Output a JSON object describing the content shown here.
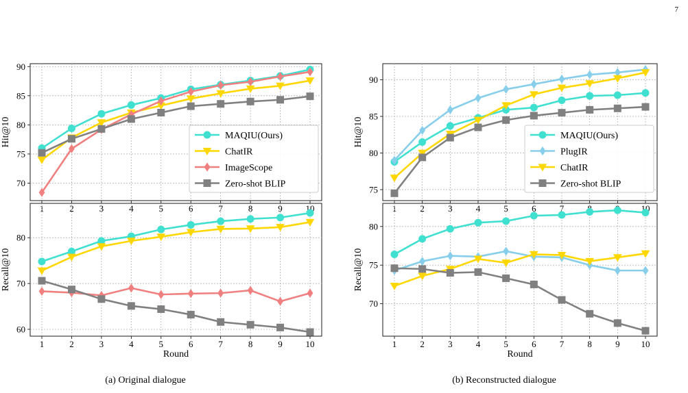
{
  "page_number": "7",
  "captions": {
    "left": "(a) Original dialogue",
    "right": "(b) Reconstructed dialogue"
  },
  "colors": {
    "MAQIU(Ours)": "#40E0D0",
    "PlugIR": "#87CEEB",
    "ChatIR": "#FFD700",
    "ImageScope": "#F08080",
    "Zero-shot BLIP": "#808080"
  },
  "chart_data": [
    {
      "id": "a-hit",
      "type": "line",
      "panel": "a",
      "ylabel": "Hit@10",
      "xlabel": "",
      "x": [
        1,
        2,
        3,
        4,
        5,
        6,
        7,
        8,
        9,
        10
      ],
      "ylim": [
        67,
        90.5
      ],
      "yticks": [
        70,
        75,
        80,
        85,
        90
      ],
      "grid": true,
      "legend_position": "center-right",
      "series": [
        {
          "name": "MAQIU(Ours)",
          "marker": "circle",
          "values": [
            76.0,
            79.4,
            81.9,
            83.4,
            84.6,
            86.1,
            86.9,
            87.6,
            88.4,
            89.5
          ]
        },
        {
          "name": "ChatIR",
          "marker": "triangle-down",
          "values": [
            74.0,
            77.8,
            80.4,
            82.1,
            83.3,
            84.5,
            85.4,
            86.2,
            86.7,
            87.6
          ]
        },
        {
          "name": "ImageScope",
          "marker": "diamond",
          "values": [
            68.4,
            75.9,
            79.2,
            81.8,
            84.1,
            85.7,
            86.8,
            87.4,
            88.3,
            89.1
          ]
        },
        {
          "name": "Zero-shot BLIP",
          "marker": "square",
          "values": [
            75.2,
            77.6,
            79.3,
            81.0,
            82.1,
            83.2,
            83.6,
            84.0,
            84.3,
            84.9
          ]
        }
      ]
    },
    {
      "id": "a-recall",
      "type": "line",
      "panel": "a",
      "ylabel": "Recall@10",
      "xlabel": "Round",
      "x": [
        1,
        2,
        3,
        4,
        5,
        6,
        7,
        8,
        9,
        10
      ],
      "ylim": [
        58.5,
        87.5
      ],
      "yticks": [
        60,
        70,
        80
      ],
      "grid": true,
      "series": [
        {
          "name": "MAQIU(Ours)",
          "marker": "circle",
          "values": [
            74.8,
            77.0,
            79.3,
            80.3,
            81.8,
            82.8,
            83.6,
            84.1,
            84.4,
            85.4
          ]
        },
        {
          "name": "ChatIR",
          "marker": "triangle-down",
          "values": [
            72.8,
            75.8,
            78.1,
            79.3,
            80.2,
            81.2,
            81.9,
            82.0,
            82.3,
            83.4
          ]
        },
        {
          "name": "ImageScope",
          "marker": "diamond",
          "values": [
            68.3,
            68.0,
            67.4,
            69.0,
            67.6,
            67.8,
            67.9,
            68.5,
            66.1,
            67.9
          ]
        },
        {
          "name": "Zero-shot BLIP",
          "marker": "square",
          "values": [
            70.6,
            68.7,
            66.6,
            65.1,
            64.4,
            63.2,
            61.6,
            61.0,
            60.4,
            59.4
          ]
        }
      ]
    },
    {
      "id": "b-hit",
      "type": "line",
      "panel": "b",
      "ylabel": "Hit@10",
      "xlabel": "",
      "x": [
        1,
        2,
        3,
        4,
        5,
        6,
        7,
        8,
        9,
        10
      ],
      "ylim": [
        73.5,
        92.2
      ],
      "yticks": [
        75,
        80,
        85,
        90
      ],
      "grid": true,
      "legend_position": "center-right",
      "series": [
        {
          "name": "MAQIU(Ours)",
          "marker": "circle",
          "values": [
            78.8,
            81.5,
            83.7,
            84.8,
            85.9,
            86.2,
            87.2,
            87.8,
            87.9,
            88.2
          ]
        },
        {
          "name": "PlugIR",
          "marker": "diamond",
          "values": [
            79.0,
            83.1,
            85.9,
            87.5,
            88.7,
            89.4,
            90.1,
            90.7,
            91.0,
            91.4
          ]
        },
        {
          "name": "ChatIR",
          "marker": "triangle-down",
          "values": [
            76.6,
            80.0,
            82.6,
            84.5,
            86.5,
            88.0,
            88.9,
            89.5,
            90.2,
            91.0
          ]
        },
        {
          "name": "Zero-shot BLIP",
          "marker": "square",
          "values": [
            74.5,
            79.4,
            82.1,
            83.5,
            84.5,
            85.1,
            85.5,
            85.9,
            86.1,
            86.3
          ]
        }
      ]
    },
    {
      "id": "b-recall",
      "type": "line",
      "panel": "b",
      "ylabel": "Recall@10",
      "xlabel": "Round",
      "x": [
        1,
        2,
        3,
        4,
        5,
        6,
        7,
        8,
        9,
        10
      ],
      "ylim": [
        65.8,
        83.0
      ],
      "yticks": [
        70,
        75,
        80
      ],
      "grid": true,
      "series": [
        {
          "name": "MAQIU(Ours)",
          "marker": "circle",
          "values": [
            76.4,
            78.4,
            79.7,
            80.5,
            80.7,
            81.4,
            81.5,
            81.9,
            82.1,
            81.8
          ]
        },
        {
          "name": "PlugIR",
          "marker": "diamond",
          "values": [
            74.3,
            75.5,
            76.2,
            76.1,
            76.8,
            76.1,
            76.0,
            75.0,
            74.3,
            74.3
          ]
        },
        {
          "name": "ChatIR",
          "marker": "triangle-down",
          "values": [
            72.3,
            73.6,
            74.5,
            75.8,
            75.3,
            76.4,
            76.3,
            75.5,
            76.0,
            76.5
          ]
        },
        {
          "name": "Zero-shot BLIP",
          "marker": "square",
          "values": [
            74.6,
            74.5,
            74.0,
            74.1,
            73.3,
            72.5,
            70.5,
            68.7,
            67.5,
            66.5
          ]
        }
      ]
    }
  ]
}
